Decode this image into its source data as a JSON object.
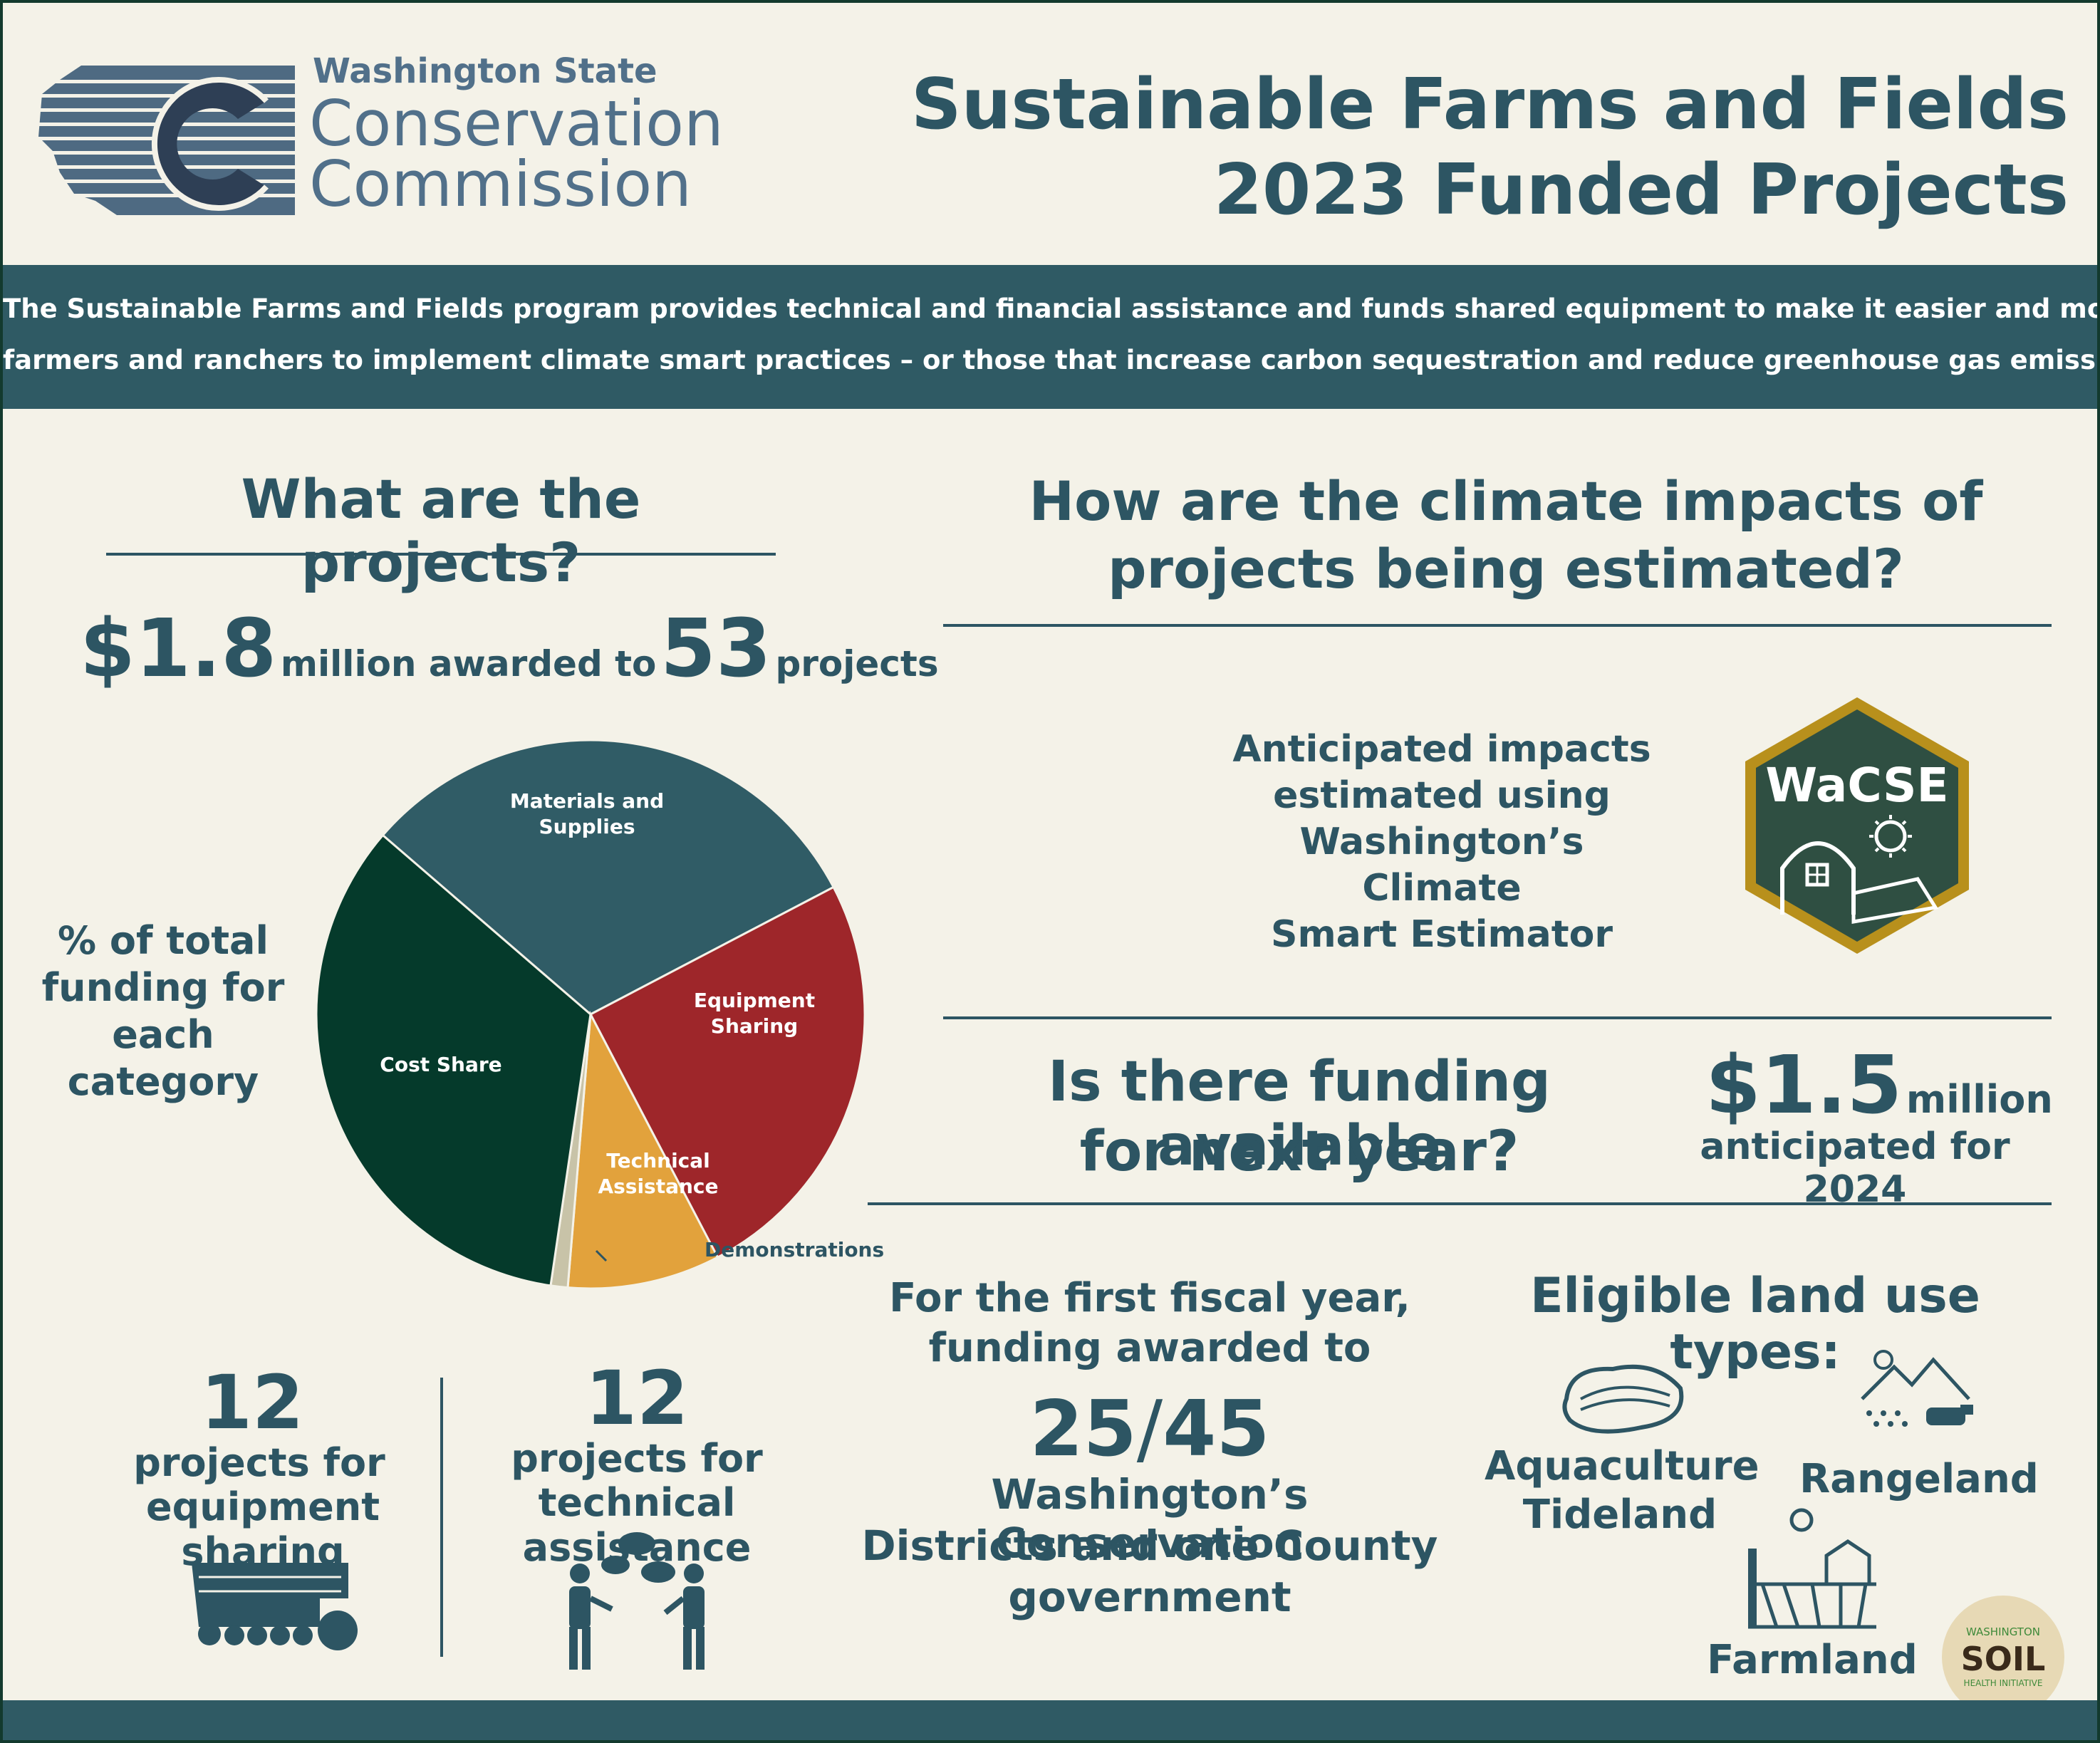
{
  "header": {
    "org_line1": "Washington State",
    "org_line2": "Conservation",
    "org_line3": "Commission",
    "title_line1": "Sustainable Farms and Fields",
    "title_line2": "2023 Funded Projects"
  },
  "banner": {
    "line1": "The Sustainable Farms and Fields program provides technical and financial assistance and funds shared equipment to make it easier and more affordable for",
    "line2": "farmers and ranchers to implement climate smart practices – or those that increase carbon sequestration and reduce greenhouse gas emissions"
  },
  "projects": {
    "heading": "What are the projects?",
    "amount": "$1.8",
    "amount_text": "million awarded to",
    "count": "53",
    "count_text": "projects",
    "pie_caption_line1": "% of total",
    "pie_caption_line2": "funding for",
    "pie_caption_line3": "each category"
  },
  "chart_data": {
    "type": "pie",
    "title": "",
    "slices": [
      {
        "label": "Materials and Supplies",
        "value": 31,
        "color": "#305c66"
      },
      {
        "label": "Equipment Sharing",
        "value": 25,
        "color": "#9e262a"
      },
      {
        "label": "Technical Assistance",
        "value": 9,
        "color": "#e2a23c"
      },
      {
        "label": "Demonstrations",
        "value": 1,
        "color": "#c8c3a8"
      },
      {
        "label": "Cost Share",
        "value": 34,
        "color": "#053a2b"
      }
    ]
  },
  "counts": {
    "equipment_number": "12",
    "equipment_line1": "projects for",
    "equipment_line2": "equipment sharing",
    "technical_number": "12",
    "technical_line1": "projects for",
    "technical_line2": "technical assistance"
  },
  "climate": {
    "heading_line1": "How are the climate impacts of",
    "heading_line2": "projects being estimated?",
    "text_line1": "Anticipated impacts",
    "text_line2": "estimated using",
    "text_line3": "Washington’s Climate",
    "text_line4": "Smart Estimator",
    "badge": "WaCSE"
  },
  "next_year": {
    "heading_line1": "Is there funding available",
    "heading_line2": "for next year?",
    "amount": "$1.5",
    "amount_unit": "million",
    "amount_text": "anticipated for 2024"
  },
  "districts": {
    "line1": "For the first fiscal year,",
    "line2": "funding awarded to",
    "fraction_num": "25",
    "fraction_den": "45",
    "line3": "Washington’s Conservation",
    "line4": "Districts and one County",
    "line5": "government"
  },
  "land": {
    "heading": "Eligible land use types:",
    "aquaculture_line1": "Aquaculture",
    "aquaculture_line2": "Tideland",
    "rangeland": "Rangeland",
    "farmland": "Farmland",
    "soil_badge_top": "WASHINGTON",
    "soil_badge_main": "SOIL",
    "soil_badge_bottom": "HEALTH INITIATIVE"
  }
}
